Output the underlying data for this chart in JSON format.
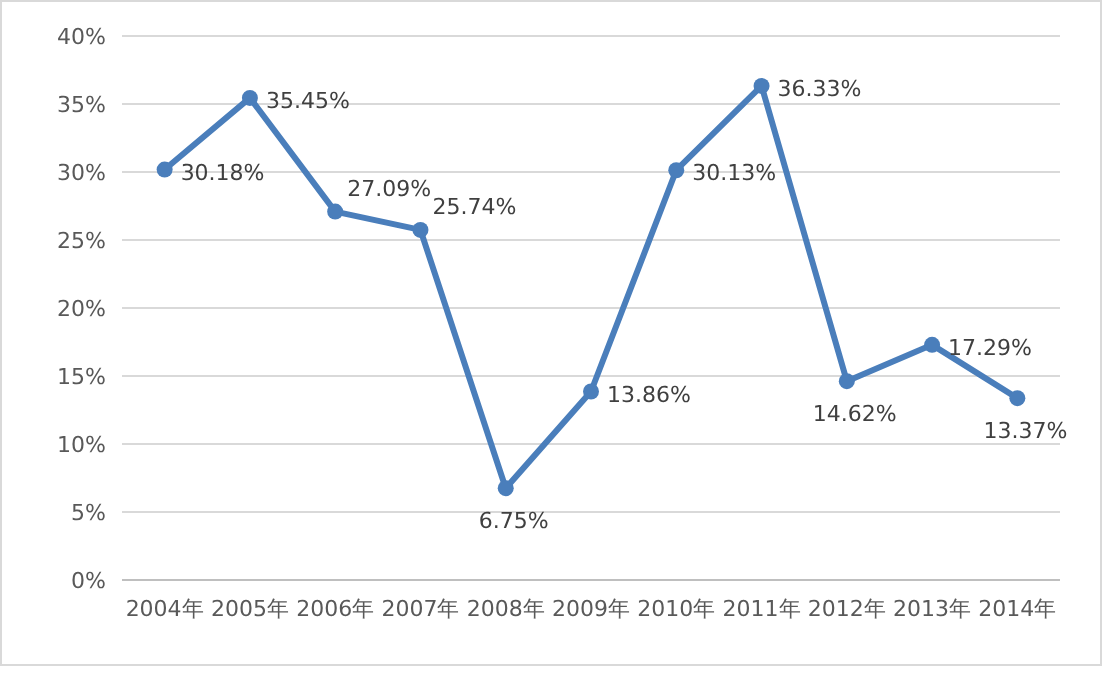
{
  "chart_data": {
    "type": "line",
    "categories": [
      "2004年",
      "2005年",
      "2006年",
      "2007年",
      "2008年",
      "2009年",
      "2010年",
      "2011年",
      "2012年",
      "2013年",
      "2014年"
    ],
    "series": [
      {
        "color": "#4a7ebb",
        "values": [
          30.18,
          35.45,
          27.09,
          25.74,
          6.75,
          13.86,
          30.13,
          36.33,
          14.62,
          17.29,
          13.37
        ],
        "value_labels": [
          "30.18%",
          "35.45%",
          "27.09%",
          "25.74%",
          "6.75%",
          "13.86%",
          "30.13%",
          "36.33%",
          "14.62%",
          "17.29%",
          "13.37%"
        ]
      }
    ],
    "ylim": [
      0,
      40
    ],
    "yticks": [
      {
        "value": 0,
        "label": "0%"
      },
      {
        "value": 5,
        "label": "5%"
      },
      {
        "value": 10,
        "label": "10%"
      },
      {
        "value": 15,
        "label": "15%"
      },
      {
        "value": 20,
        "label": "20%"
      },
      {
        "value": 25,
        "label": "25%"
      },
      {
        "value": 30,
        "label": "30%"
      },
      {
        "value": 35,
        "label": "35%"
      },
      {
        "value": 40,
        "label": "40%"
      }
    ],
    "grid": "y",
    "marker": "circle",
    "line_style": "solid"
  }
}
